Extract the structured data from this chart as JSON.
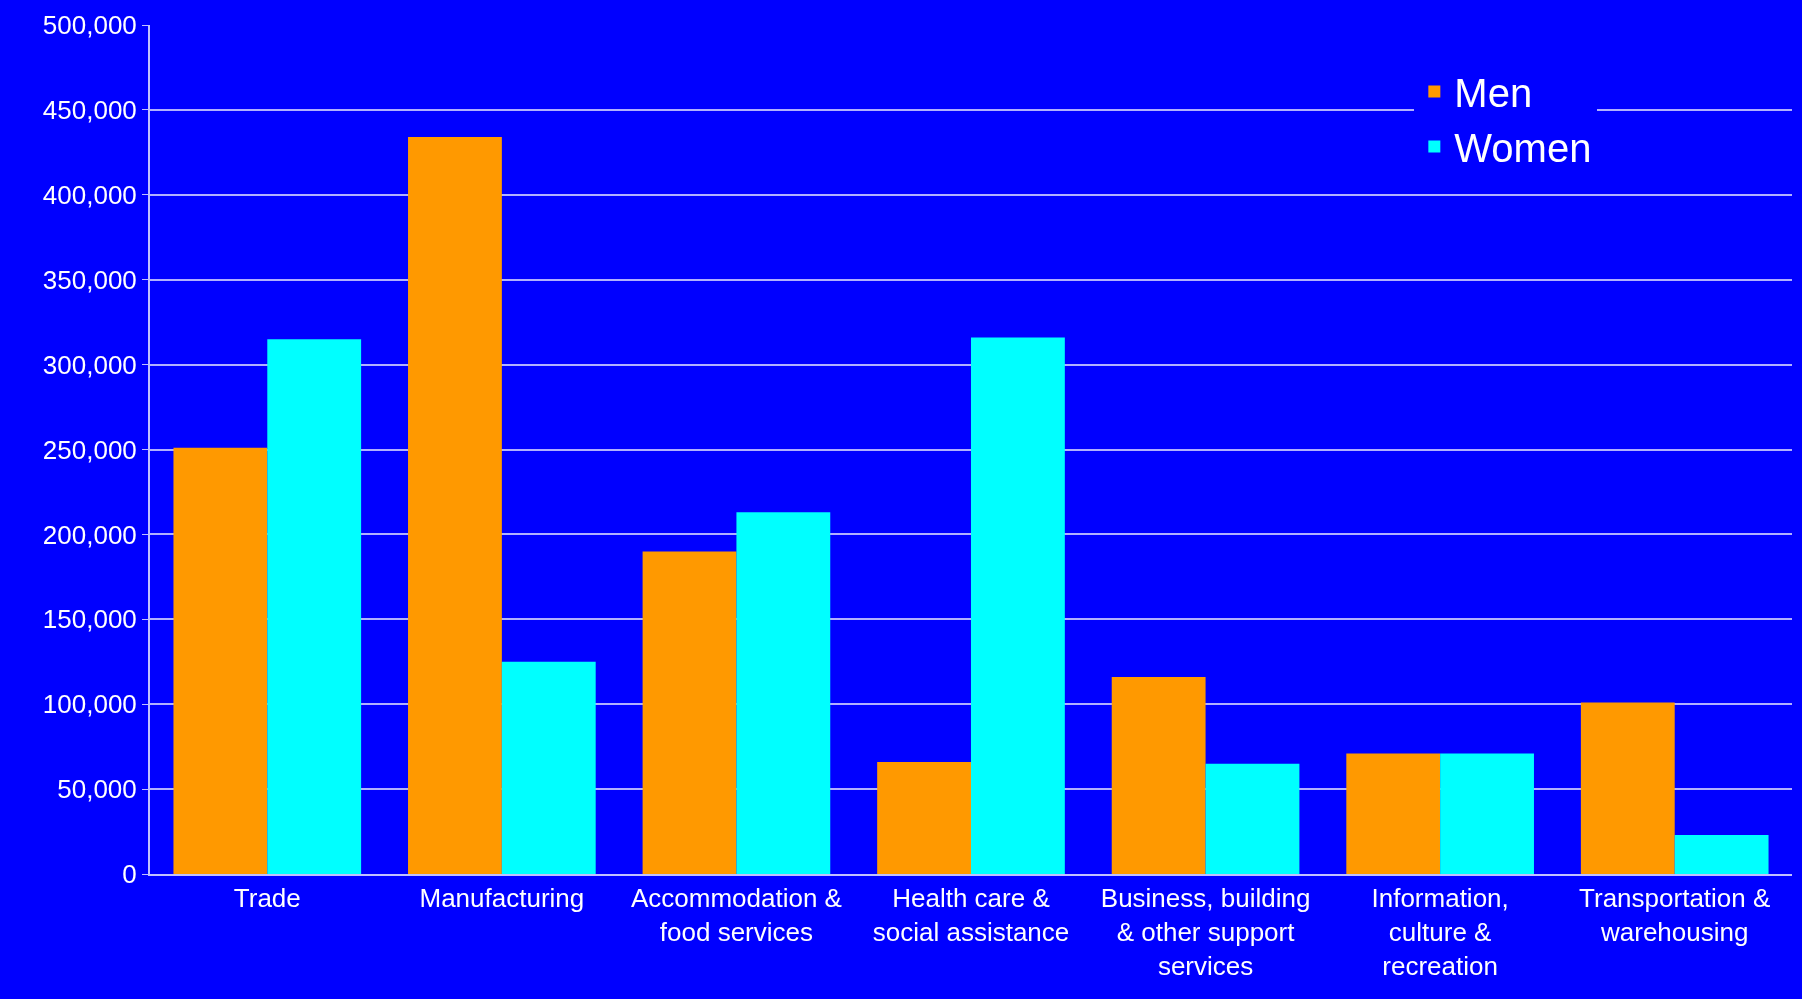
{
  "chart_data": {
    "type": "bar",
    "categories": [
      "Trade",
      "Manufacturing",
      "Accommodation & food services",
      "Health care & social assistance",
      "Business, building & other support services",
      "Information, culture & recreation",
      "Transportation & warehousing"
    ],
    "series": [
      {
        "name": "Men",
        "color": "#ff9900",
        "values": [
          251000,
          434000,
          190000,
          66000,
          116000,
          71000,
          101000
        ]
      },
      {
        "name": "Women",
        "color": "#00ffff",
        "values": [
          315000,
          125000,
          213000,
          316000,
          65000,
          71000,
          23000
        ]
      }
    ],
    "ylim": [
      0,
      500000
    ],
    "yticks": [
      {
        "value": 0,
        "label": "0"
      },
      {
        "value": 50000,
        "label": "50,000"
      },
      {
        "value": 100000,
        "label": "100,000"
      },
      {
        "value": 150000,
        "label": "150,000"
      },
      {
        "value": 200000,
        "label": "200,000"
      },
      {
        "value": 250000,
        "label": "250,000"
      },
      {
        "value": 300000,
        "label": "300,000"
      },
      {
        "value": 350000,
        "label": "350,000"
      },
      {
        "value": 400000,
        "label": "400,000"
      },
      {
        "value": 450000,
        "label": "450,000"
      },
      {
        "value": 500000,
        "label": "500,000"
      }
    ],
    "grid": "y",
    "legend": "top right"
  }
}
